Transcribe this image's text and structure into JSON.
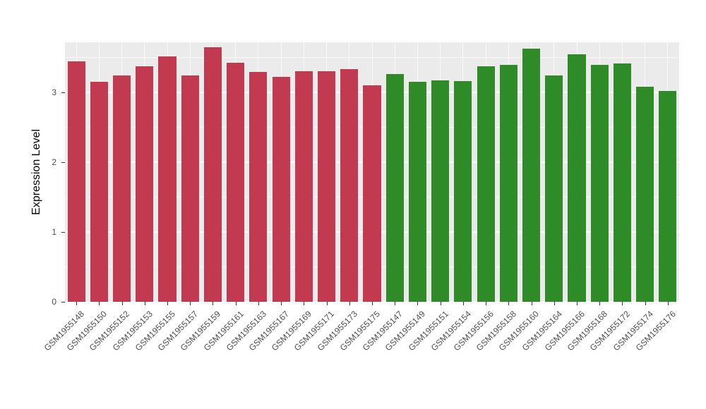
{
  "chart_data": {
    "type": "bar",
    "title": "",
    "xlabel": "",
    "ylabel": "Expression Level",
    "ylim": [
      0,
      3.72
    ],
    "yticks": [
      0,
      1,
      2,
      3
    ],
    "grid": "on",
    "legend": "none",
    "panel_background": "#EBEBEB",
    "gridline_color": "#FFFFFF",
    "palette": {
      "red": "#C23A50",
      "green": "#2E8B27"
    },
    "categories": [
      "GSM1955148",
      "GSM1955150",
      "GSM1955152",
      "GSM1955153",
      "GSM1955155",
      "GSM1955157",
      "GSM1955159",
      "GSM1955161",
      "GSM1955163",
      "GSM1955167",
      "GSM1955169",
      "GSM1955171",
      "GSM1955173",
      "GSM1955175",
      "GSM1955147",
      "GSM1955149",
      "GSM1955151",
      "GSM1955154",
      "GSM1955156",
      "GSM1955158",
      "GSM1955160",
      "GSM1955164",
      "GSM1955166",
      "GSM1955168",
      "GSM1955172",
      "GSM1955174",
      "GSM1955176"
    ],
    "values": [
      3.45,
      3.15,
      3.25,
      3.38,
      3.52,
      3.25,
      3.65,
      3.43,
      3.3,
      3.22,
      3.31,
      3.31,
      3.34,
      3.1,
      3.27,
      3.15,
      3.17,
      3.16,
      3.38,
      3.4,
      3.63,
      3.25,
      3.55,
      3.4,
      3.42,
      3.08,
      3.02
    ],
    "groups": [
      "red",
      "red",
      "red",
      "red",
      "red",
      "red",
      "red",
      "red",
      "red",
      "red",
      "red",
      "red",
      "red",
      "red",
      "green",
      "green",
      "green",
      "green",
      "green",
      "green",
      "green",
      "green",
      "green",
      "green",
      "green",
      "green",
      "green"
    ]
  }
}
